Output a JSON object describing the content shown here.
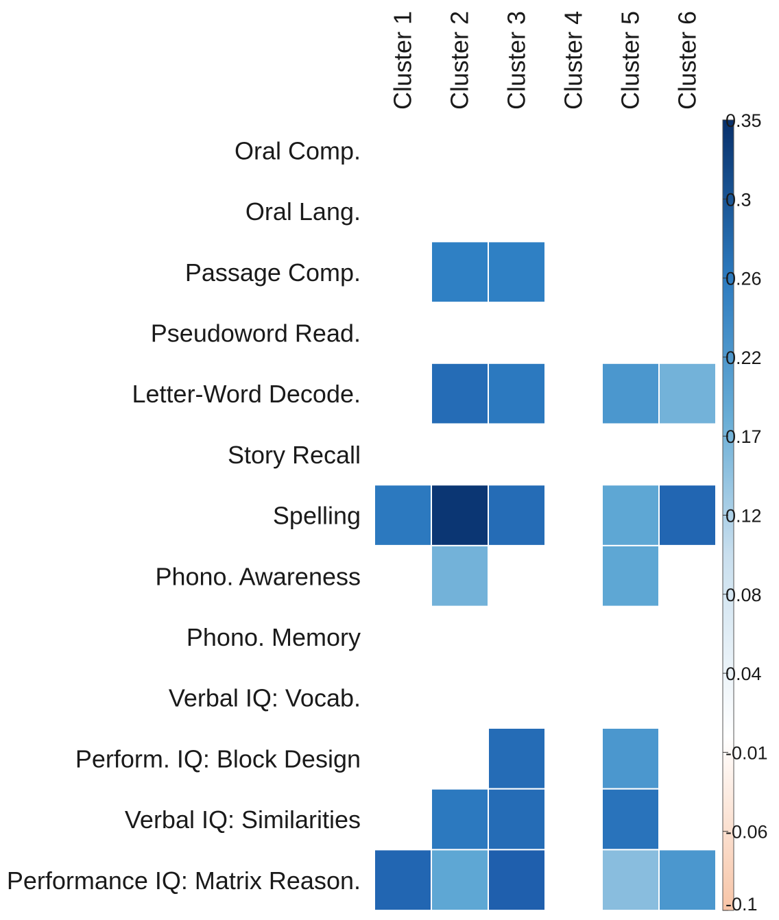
{
  "chart_data": {
    "type": "heatmap",
    "title": "",
    "xlabel": "",
    "ylabel": "",
    "columns": [
      "Cluster 1",
      "Cluster 2",
      "Cluster 3",
      "Cluster 4",
      "Cluster 5",
      "Cluster 6"
    ],
    "rows": [
      "Oral Comp.",
      "Oral Lang.",
      "Passage Comp.",
      "Pseudoword Read.",
      "Letter-Word Decode.",
      "Story Recall",
      "Spelling",
      "Phono. Awareness",
      "Phono. Memory",
      "Verbal IQ: Vocab.",
      "Perform. IQ: Block Design",
      "Verbal IQ: Similarities",
      "Performance IQ: Matrix Reason."
    ],
    "values": [
      [
        null,
        null,
        null,
        null,
        null,
        null
      ],
      [
        null,
        null,
        null,
        null,
        null,
        null
      ],
      [
        null,
        0.22,
        0.22,
        null,
        null,
        null
      ],
      [
        null,
        null,
        null,
        null,
        null,
        null
      ],
      [
        null,
        0.25,
        0.23,
        null,
        0.19,
        0.16
      ],
      [
        null,
        null,
        null,
        null,
        null,
        null
      ],
      [
        0.23,
        0.34,
        0.25,
        null,
        0.17,
        0.26
      ],
      [
        null,
        0.16,
        null,
        null,
        0.17,
        null
      ],
      [
        null,
        null,
        null,
        null,
        null,
        null
      ],
      [
        null,
        null,
        null,
        null,
        null,
        null
      ],
      [
        null,
        null,
        0.25,
        null,
        0.19,
        null
      ],
      [
        null,
        0.23,
        0.25,
        null,
        0.24,
        null
      ],
      [
        0.26,
        0.17,
        0.27,
        null,
        0.15,
        0.19
      ]
    ],
    "colorbar": {
      "min": -0.1,
      "max": 0.35,
      "ticks": [
        "0.35",
        "0.3",
        "0.26",
        "0.22",
        "0.17",
        "0.12",
        "0.08",
        "0.04",
        "-0.01",
        "-0.06",
        "-0.1"
      ],
      "low_color": "#f4a582",
      "mid_color": "#ffffff",
      "high_color": "#08306b",
      "mid_value": 0.0
    }
  }
}
